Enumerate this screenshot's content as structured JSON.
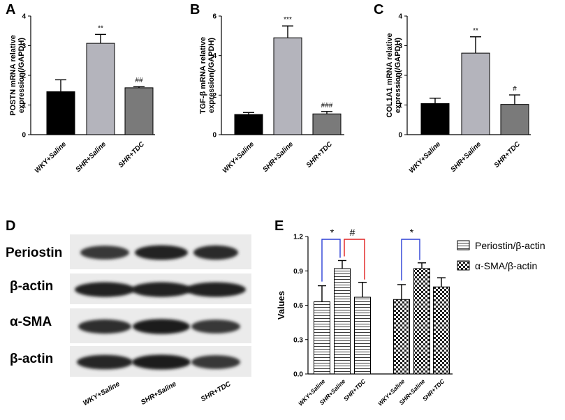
{
  "chart_data": [
    {
      "panel": "A",
      "type": "bar",
      "categories": [
        "WKY+Saline",
        "SHR+Saline",
        "SHR+TDC"
      ],
      "values": [
        1.45,
        3.08,
        1.58
      ],
      "errors": [
        0.4,
        0.3,
        0.04
      ],
      "significance": [
        "",
        "**",
        "##"
      ],
      "colors": [
        "#000000",
        "#b4b4bc",
        "#7a7a7a"
      ],
      "ylabel": "POSTN mRNA relative expression(/GAPDH)",
      "ylim": [
        0,
        4
      ],
      "yticks": [
        "0",
        "1",
        "2",
        "3",
        "4"
      ]
    },
    {
      "panel": "B",
      "type": "bar",
      "categories": [
        "WKY+Saline",
        "SHR+Saline",
        "SHR+TDC"
      ],
      "values": [
        1.02,
        4.9,
        1.05
      ],
      "errors": [
        0.1,
        0.6,
        0.12
      ],
      "significance": [
        "",
        "***",
        "###"
      ],
      "colors": [
        "#000000",
        "#b4b4bc",
        "#7a7a7a"
      ],
      "ylabel": "TGF-β mRNA relative expression(/GAPDH)",
      "ylim": [
        0,
        6
      ],
      "yticks": [
        "0",
        "2",
        "4",
        "6"
      ]
    },
    {
      "panel": "C",
      "type": "bar",
      "categories": [
        "WKY+Saline",
        "SHR+Saline",
        "SHR+TDC"
      ],
      "values": [
        1.05,
        2.75,
        1.02
      ],
      "errors": [
        0.18,
        0.55,
        0.32
      ],
      "significance": [
        "",
        "**",
        "#"
      ],
      "colors": [
        "#000000",
        "#b4b4bc",
        "#7a7a7a"
      ],
      "ylabel": "COL1A1 mRNA relative expression(/GAPDH)",
      "ylim": [
        0,
        4
      ],
      "yticks": [
        "0",
        "1",
        "2",
        "3",
        "4"
      ]
    },
    {
      "panel": "E",
      "type": "bar",
      "categories": [
        "WKY+Saline",
        "SHR+Saline",
        "SHR+TDC"
      ],
      "ylabel": "Values",
      "ylim": [
        0,
        1.2
      ],
      "yticks": [
        "0.0",
        "0.3",
        "0.6",
        "0.9",
        "1.2"
      ],
      "legend_position": "right",
      "series": [
        {
          "name": "Periostin/β-actin",
          "pattern": "horizontal-lines",
          "values": [
            0.63,
            0.92,
            0.67
          ],
          "errors": [
            0.14,
            0.07,
            0.13
          ]
        },
        {
          "name": "α-SMA/β-actin",
          "pattern": "checkerboard",
          "values": [
            0.65,
            0.92,
            0.76
          ],
          "errors": [
            0.13,
            0.05,
            0.08
          ]
        }
      ],
      "comparisons": [
        {
          "series": 0,
          "from": 0,
          "to": 1,
          "label": "*",
          "color": "#2b3fd6"
        },
        {
          "series": 0,
          "from": 1,
          "to": 2,
          "label": "#",
          "color": "#e02020"
        },
        {
          "series": 1,
          "from": 0,
          "to": 1,
          "label": "*",
          "color": "#2b3fd6"
        }
      ]
    }
  ],
  "panels": {
    "a": "A",
    "b": "B",
    "c": "C",
    "d": "D",
    "e": "E"
  },
  "blot": {
    "rows": [
      "Periostin",
      "β-actin",
      "α-SMA",
      "β-actin"
    ],
    "band_intensity": [
      [
        0.72,
        0.88,
        0.82
      ],
      [
        0.9,
        0.9,
        0.88
      ],
      [
        0.8,
        0.95,
        0.72
      ],
      [
        0.85,
        0.92,
        0.72
      ]
    ],
    "lanes": [
      "WKY+Saline",
      "SHR+Saline",
      "SHR+TDC"
    ]
  }
}
